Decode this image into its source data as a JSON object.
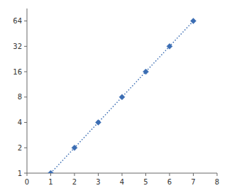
{
  "chart_data": {
    "type": "line",
    "x": [
      1,
      2,
      3,
      4,
      5,
      6,
      7
    ],
    "values": [
      1,
      2,
      4,
      8,
      16,
      32,
      64
    ],
    "color": "#3B6DB3",
    "marker": "diamond",
    "line_style": "dotted",
    "log": "y",
    "xlim": [
      0,
      8
    ],
    "ylim": [
      1,
      90
    ],
    "xticks": [
      0,
      1,
      2,
      3,
      4,
      5,
      6,
      7,
      8
    ],
    "yticks": [
      1,
      2,
      4,
      8,
      16,
      32,
      64
    ],
    "grid": false
  }
}
